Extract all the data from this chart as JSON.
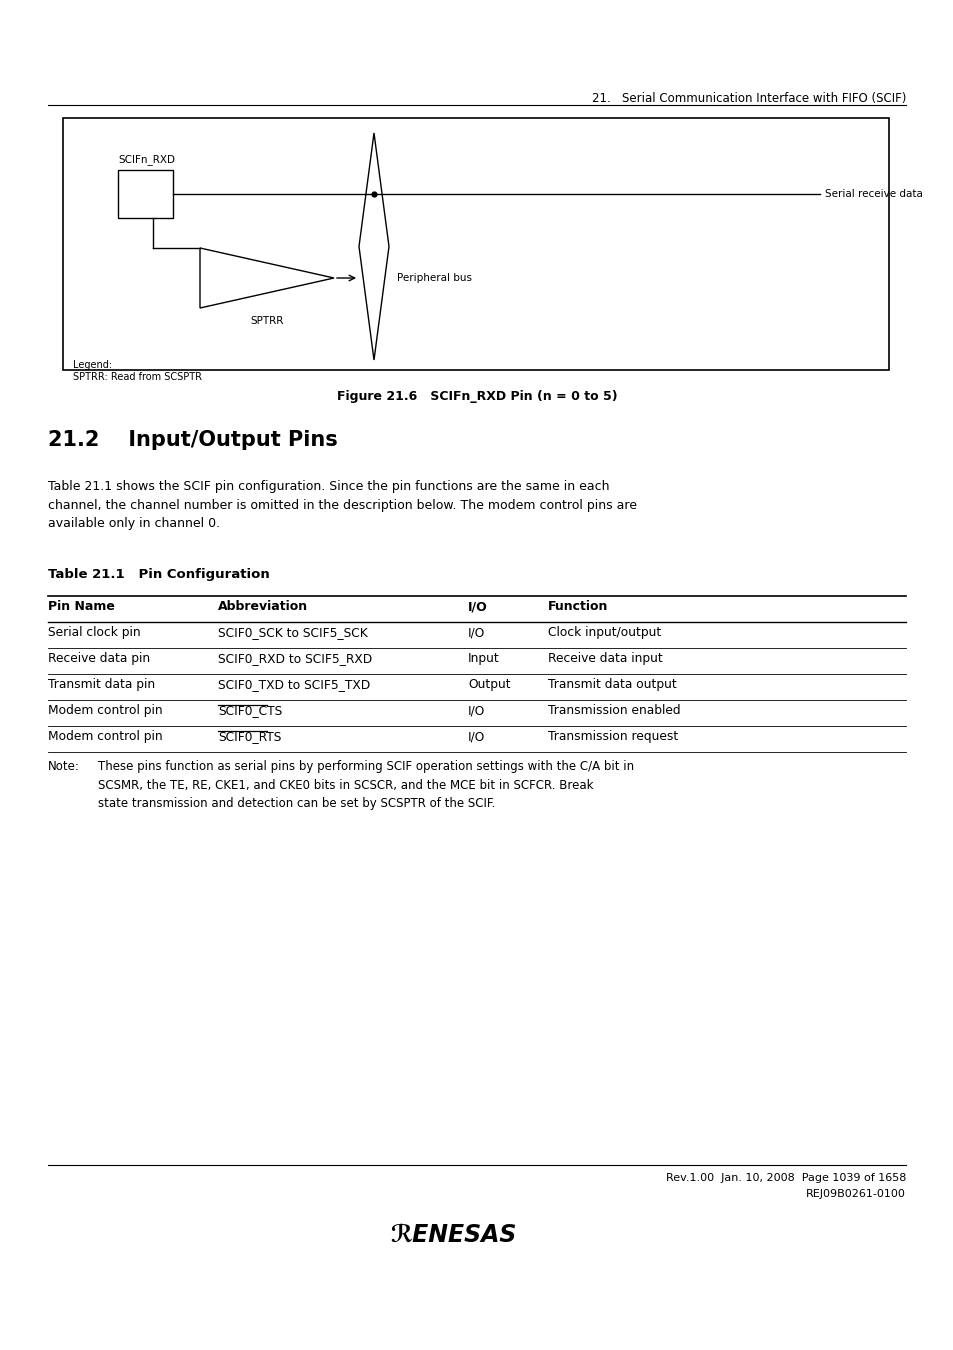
{
  "header_text": "21.   Serial Communication Interface with FIFO (SCIF)",
  "figure_caption": "Figure 21.6   SCIFn_RXD Pin (n = 0 to 5)",
  "section_title": "21.2    Input/Output Pins",
  "body_text": "Table 21.1 shows the SCIF pin configuration. Since the pin functions are the same in each\nchannel, the channel number is omitted in the description below. The modem control pins are\navailable only in channel 0.",
  "table_title": "Table 21.1   Pin Configuration",
  "table_headers": [
    "Pin Name",
    "Abbreviation",
    "I/O",
    "Function"
  ],
  "table_rows": [
    [
      "Serial clock pin",
      "SCIF0_SCK to SCIF5_SCK",
      "I/O",
      "Clock input/output"
    ],
    [
      "Receive data pin",
      "SCIF0_RXD to SCIF5_RXD",
      "Input",
      "Receive data input"
    ],
    [
      "Transmit data pin",
      "SCIF0_TXD to SCIF5_TXD",
      "Output",
      "Transmit data output"
    ],
    [
      "Modem control pin",
      "SCIF0_CTS",
      "I/O",
      "Transmission enabled"
    ],
    [
      "Modem control pin",
      "SCIF0_RTS",
      "I/O",
      "Transmission request"
    ]
  ],
  "table_overline_rows": [
    3,
    4
  ],
  "note_label": "Note:",
  "note_indent": "These pins function as serial pins by performing SCIF operation settings with the C/A bit in\nSCSMR, the TE, RE, CKE1, and CKE0 bits in SCSCR, and the MCE bit in SCFCR. Break\nstate transmission and detection can be set by SCSPTR of the SCIF.",
  "footer_line1": "Rev.1.00  Jan. 10, 2008  Page 1039 of 1658",
  "footer_line2": "REJ09B0261-0100",
  "bg_color": "#ffffff",
  "text_color": "#000000"
}
